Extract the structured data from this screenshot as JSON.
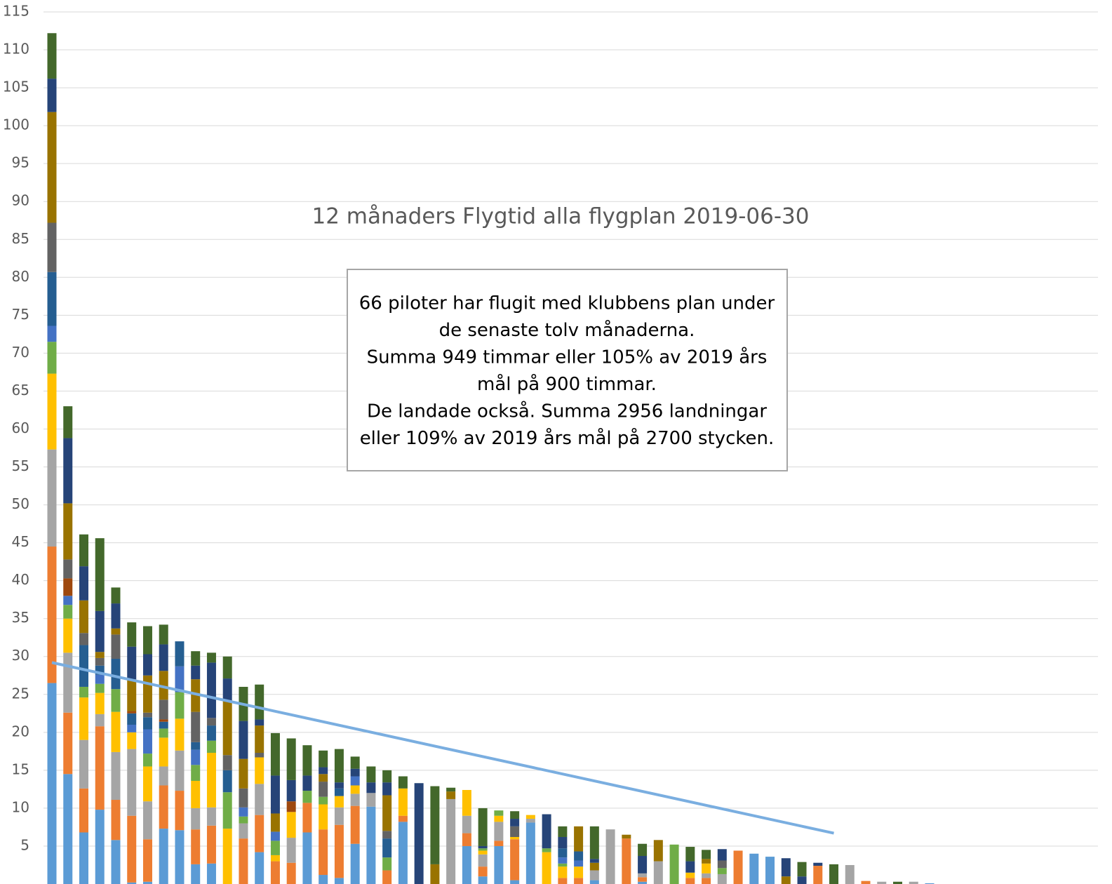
{
  "chart_data": {
    "type": "stacked_bar",
    "title": "12 månaders Flygtid alla flygplan 2019-06-30",
    "annotation": [
      "66 piloter har flugit med klubbens plan under",
      "de senaste tolv månaderna.",
      "Summa 949 timmar eller 105% av 2019 års",
      "mål på 900 timmar.",
      "De landade också. Summa 2956 landningar",
      "eller 109% av 2019 års mål på 2700 stycken."
    ],
    "ylim": [
      0,
      115
    ],
    "yticks": [
      5,
      10,
      15,
      20,
      25,
      30,
      35,
      40,
      45,
      50,
      55,
      60,
      65,
      70,
      75,
      80,
      85,
      90,
      95,
      100,
      105,
      110,
      115
    ],
    "grid": true,
    "series": [
      {
        "color": "#5b9bd5",
        "values": [
          26.5,
          14.5,
          6.8,
          9.8,
          5.8,
          0.2,
          0.3,
          7.3,
          7.1,
          2.6,
          2.7,
          0,
          0,
          4.2,
          0,
          0,
          6.8,
          1.2,
          0.8,
          5.3,
          10.2,
          0,
          8.2,
          0,
          0,
          0,
          5,
          1,
          5,
          0.5,
          8.1,
          0,
          0,
          0,
          0.5,
          0,
          0,
          0.3,
          0,
          0,
          0,
          0,
          0,
          0,
          4,
          3.6,
          0,
          0,
          0,
          0,
          0,
          0,
          0,
          0,
          0,
          0.1
        ]
      },
      {
        "color": "#ed7d31",
        "values": [
          18,
          8.1,
          5.8,
          11,
          5.3,
          8.8,
          5.6,
          5.7,
          5.2,
          4.6,
          5,
          0,
          6,
          4.9,
          3,
          2.8,
          3.9,
          6,
          7,
          5,
          0,
          1.8,
          0.8,
          0,
          0,
          0,
          1.7,
          1.3,
          0.7,
          5.4,
          0,
          0,
          0.8,
          0.8,
          0,
          0,
          6,
          0.6,
          0,
          0,
          0.8,
          0.8,
          0,
          4.4,
          0,
          0,
          0,
          0,
          2.4,
          0,
          0,
          0.4,
          0,
          0,
          0,
          0
        ]
      },
      {
        "color": "#a5a5a5",
        "values": [
          12.8,
          7.9,
          6.4,
          1.6,
          6.3,
          8.8,
          5,
          2.5,
          5.3,
          2.8,
          2.4,
          0,
          2,
          4.1,
          0,
          3.3,
          0,
          0,
          2.3,
          1.6,
          1.8,
          0,
          0,
          0,
          0,
          11.2,
          2.3,
          1.6,
          2.5,
          0,
          0.5,
          0,
          0,
          0,
          1.3,
          7.2,
          0,
          0.5,
          3,
          0,
          0,
          0.6,
          1.3,
          0,
          0,
          0,
          0,
          0,
          0,
          0,
          2.5,
          0,
          0.3,
          0,
          0.3,
          0
        ]
      },
      {
        "color": "#ffc000",
        "values": [
          10,
          4.5,
          5.6,
          2.8,
          5.3,
          2.2,
          4.6,
          3.8,
          4.2,
          3.6,
          7.2,
          7.3,
          0,
          3.5,
          0.8,
          3.4,
          0,
          3.3,
          1.5,
          1.1,
          0,
          0,
          3.6,
          0,
          0,
          0,
          3.4,
          0.5,
          0.8,
          0.3,
          0.5,
          4.2,
          1.5,
          1.5,
          0,
          0,
          0,
          0,
          0,
          0,
          0.7,
          1.3,
          0,
          0,
          0,
          0,
          0,
          0,
          0,
          0,
          0,
          0,
          0,
          0,
          0,
          0
        ]
      },
      {
        "color": "#70ad47",
        "values": [
          4.2,
          1.8,
          1.4,
          1.2,
          3,
          0,
          1.7,
          1.2,
          3.5,
          2.1,
          1.6,
          4.8,
          0.9,
          0,
          1.9,
          0,
          1.6,
          1,
          0,
          0,
          0,
          1.7,
          0,
          0,
          0,
          0,
          0,
          0.3,
          0.7,
          0,
          0,
          0.5,
          0.4,
          0,
          0,
          0,
          0,
          0,
          0,
          5.2,
          0,
          0,
          0.8,
          0,
          0,
          0,
          0,
          0,
          0,
          0,
          0,
          0,
          0,
          0,
          0,
          0
        ]
      },
      {
        "color": "#4472c4",
        "values": [
          2.1,
          1.2,
          0,
          1.2,
          0,
          1,
          3.2,
          0,
          3.4,
          2,
          0,
          0,
          1.2,
          0,
          1.2,
          0,
          0,
          0,
          0,
          1.2,
          0,
          0,
          0,
          0,
          0,
          0,
          0,
          0,
          0,
          0,
          0,
          0,
          0.8,
          0.8,
          0,
          0,
          0,
          0,
          0,
          0,
          0,
          0,
          0,
          0,
          0,
          0,
          0,
          0,
          0,
          0,
          0,
          0,
          0,
          0,
          0,
          0
        ]
      },
      {
        "color": "#255e91",
        "values": [
          7.1,
          0,
          5.5,
          1.2,
          4,
          1.5,
          1.6,
          0.9,
          3.3,
          1,
          2,
          2.9,
          0,
          0,
          0,
          0,
          0,
          0,
          1,
          0,
          0,
          2.5,
          0,
          0,
          0,
          0,
          0,
          0,
          0,
          0,
          0,
          0,
          1.2,
          1.2,
          0,
          0,
          0,
          0,
          0,
          0,
          0,
          0,
          0,
          0,
          0,
          0,
          0,
          0,
          0,
          0,
          0,
          0,
          0,
          0,
          0,
          0
        ]
      },
      {
        "color": "#9e480e",
        "values": [
          0,
          2.3,
          0,
          0,
          0,
          0.3,
          0,
          0.3,
          0,
          0,
          0,
          0,
          0,
          0,
          0,
          1.4,
          0,
          0,
          0,
          0,
          0,
          0,
          0,
          0,
          0,
          0,
          0,
          0,
          0,
          0,
          0,
          0,
          0,
          0,
          0,
          0,
          0,
          0,
          0,
          0,
          0,
          0,
          0,
          0,
          0,
          0,
          0,
          0,
          0,
          0,
          0,
          0,
          0,
          0,
          0,
          0
        ]
      },
      {
        "color": "#636363",
        "values": [
          6.5,
          2.5,
          1.6,
          1,
          3.2,
          0,
          0.6,
          2.6,
          0,
          4,
          1,
          2,
          2.5,
          0.6,
          0,
          0,
          0,
          2,
          0,
          0,
          0,
          1,
          0,
          0,
          0,
          0,
          0,
          0,
          0,
          1.4,
          0,
          0,
          0,
          0,
          0,
          0,
          0,
          0,
          0,
          0,
          0,
          0,
          1,
          0,
          0,
          0,
          0,
          0,
          0,
          0,
          0,
          0,
          0,
          0,
          0,
          0
        ]
      },
      {
        "color": "#997300",
        "values": [
          14.6,
          7.4,
          4.3,
          0.8,
          0.8,
          4.2,
          4.9,
          3.8,
          0,
          4.3,
          0,
          7.2,
          3.9,
          3.6,
          2.4,
          0,
          0,
          1,
          0,
          0,
          0,
          4.7,
          0,
          0,
          2.6,
          1,
          0,
          0,
          0,
          0,
          0,
          0,
          0,
          3.3,
          1,
          0,
          0.5,
          0,
          2.8,
          0,
          0,
          0.6,
          0,
          0,
          0,
          0,
          1,
          0,
          0,
          0,
          0,
          0,
          0,
          0,
          0,
          0
        ]
      },
      {
        "color": "#264478",
        "values": [
          4.4,
          8.6,
          4.5,
          5.4,
          3.3,
          4.3,
          2.8,
          3.5,
          0,
          1.8,
          7.3,
          2.9,
          5,
          0.8,
          5,
          2.8,
          2,
          0.9,
          0.8,
          1,
          1.4,
          1.7,
          0,
          13.3,
          0,
          0,
          0,
          0.3,
          0,
          1,
          0,
          4.5,
          1.5,
          0,
          0.5,
          0,
          0,
          2.3,
          0,
          0,
          1.5,
          0,
          1.5,
          0,
          0,
          0,
          2.4,
          1,
          0.4,
          0,
          0,
          0,
          0,
          0,
          0,
          0
        ]
      },
      {
        "color": "#43682b",
        "values": [
          6,
          4.2,
          4.2,
          9.6,
          2.1,
          3.2,
          3.7,
          2.6,
          0,
          1.9,
          1.3,
          2.9,
          4.5,
          4.6,
          5.6,
          5.5,
          4,
          2.2,
          4.4,
          1.6,
          2.1,
          1.6,
          1.6,
          0,
          10.3,
          0.5,
          0,
          5,
          0,
          1,
          0,
          0,
          1.4,
          0,
          4.3,
          0,
          0,
          1.6,
          0,
          0,
          1.9,
          1.2,
          0,
          0,
          0,
          0,
          0,
          1.9,
          0,
          2.6,
          0,
          0,
          0,
          0.3,
          0,
          0
        ]
      }
    ],
    "trendline": {
      "color": "#7aaee0",
      "x": [
        1,
        50
      ],
      "values": [
        29.2,
        6.7
      ]
    }
  }
}
